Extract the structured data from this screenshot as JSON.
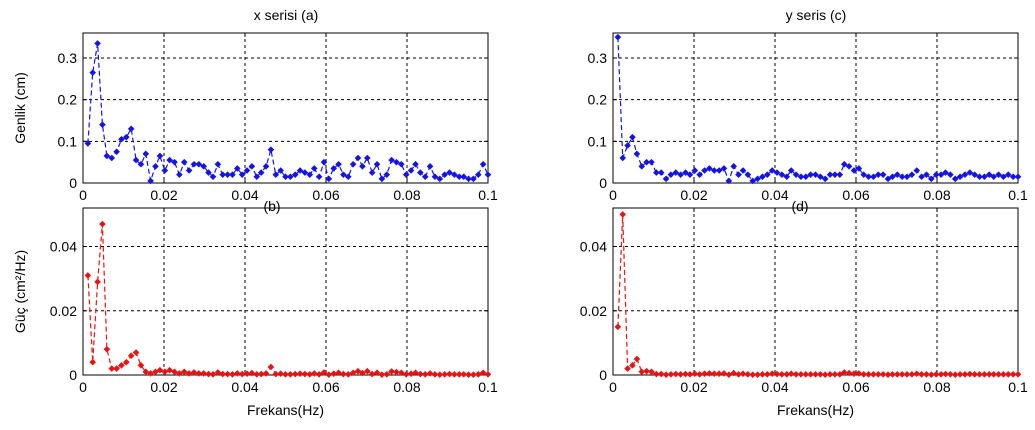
{
  "chart_data": [
    {
      "id": "a",
      "type": "line",
      "title": "x serisi (a)",
      "xlabel": "",
      "ylabel": "Genlik  (cm)",
      "xlim": [
        0,
        0.1
      ],
      "ylim": [
        0,
        0.36
      ],
      "xticks": [
        0,
        0.02,
        0.04,
        0.06,
        0.08,
        0.1
      ],
      "xtick_labels": [
        "0",
        "0.02",
        "0.04",
        "0.06",
        "0.08",
        "0.1"
      ],
      "yticks": [
        0,
        0.1,
        0.2,
        0.3
      ],
      "ytick_labels": [
        "0",
        "0.1",
        "0.2",
        "0.3"
      ],
      "grid": true,
      "color": "#1414e6",
      "marker": "diamond",
      "series": [
        {
          "x": [
            0.0012,
            0.0024,
            0.0036,
            0.0048,
            0.0059,
            0.0071,
            0.0083,
            0.0095,
            0.0107,
            0.0119,
            0.0131,
            0.0143,
            0.0155,
            0.0167,
            0.0179,
            0.019,
            0.0202,
            0.0214,
            0.0226,
            0.0238,
            0.025,
            0.0262,
            0.0274,
            0.0286,
            0.0298,
            0.031,
            0.0321,
            0.0333,
            0.0345,
            0.0357,
            0.0369,
            0.0381,
            0.0393,
            0.0405,
            0.0417,
            0.0429,
            0.044,
            0.0452,
            0.0464,
            0.0476,
            0.0488,
            0.05,
            0.0512,
            0.0524,
            0.0536,
            0.0548,
            0.056,
            0.0571,
            0.0583,
            0.0595,
            0.0607,
            0.0619,
            0.0631,
            0.0643,
            0.0655,
            0.0667,
            0.0679,
            0.069,
            0.0702,
            0.0714,
            0.0726,
            0.0738,
            0.075,
            0.0762,
            0.0774,
            0.0786,
            0.0798,
            0.081,
            0.0821,
            0.0833,
            0.0845,
            0.0857,
            0.0869,
            0.0881,
            0.0893,
            0.0905,
            0.0917,
            0.0929,
            0.094,
            0.0952,
            0.0964,
            0.0976,
            0.0988,
            0.1
          ],
          "y": [
            0.095,
            0.265,
            0.335,
            0.14,
            0.065,
            0.06,
            0.075,
            0.105,
            0.11,
            0.13,
            0.055,
            0.045,
            0.07,
            0.005,
            0.04,
            0.065,
            0.03,
            0.055,
            0.05,
            0.02,
            0.05,
            0.03,
            0.045,
            0.045,
            0.04,
            0.025,
            0.015,
            0.045,
            0.02,
            0.02,
            0.02,
            0.035,
            0.02,
            0.03,
            0.04,
            0.015,
            0.025,
            0.04,
            0.08,
            0.02,
            0.03,
            0.015,
            0.015,
            0.02,
            0.03,
            0.025,
            0.02,
            0.035,
            0.015,
            0.05,
            0.01,
            0.035,
            0.045,
            0.02,
            0.015,
            0.045,
            0.06,
            0.04,
            0.06,
            0.025,
            0.045,
            0.01,
            0.02,
            0.055,
            0.05,
            0.045,
            0.02,
            0.03,
            0.045,
            0.025,
            0.015,
            0.04,
            0.015,
            0.01,
            0.02,
            0.025,
            0.02,
            0.015,
            0.015,
            0.01,
            0.01,
            0.02,
            0.045,
            0.02
          ]
        }
      ]
    },
    {
      "id": "c",
      "type": "line",
      "title": "y seris (c)",
      "xlabel": "",
      "ylabel": "",
      "xlim": [
        0,
        0.1
      ],
      "ylim": [
        0,
        0.36
      ],
      "xticks": [
        0,
        0.02,
        0.04,
        0.06,
        0.08,
        0.1
      ],
      "xtick_labels": [
        "0",
        "0.02",
        "0.04",
        "0.06",
        "0.08",
        "0.1"
      ],
      "yticks": [
        0,
        0.1,
        0.2,
        0.3
      ],
      "ytick_labels": [
        "0",
        "0.1",
        "0.2",
        "0.3"
      ],
      "grid": true,
      "color": "#1414e6",
      "marker": "diamond",
      "series": [
        {
          "x": [
            0.0012,
            0.0024,
            0.0036,
            0.0048,
            0.0059,
            0.0071,
            0.0083,
            0.0095,
            0.0107,
            0.0119,
            0.0131,
            0.0143,
            0.0155,
            0.0167,
            0.0179,
            0.019,
            0.0202,
            0.0214,
            0.0226,
            0.0238,
            0.025,
            0.0262,
            0.0274,
            0.0286,
            0.0298,
            0.031,
            0.0321,
            0.0333,
            0.0345,
            0.0357,
            0.0369,
            0.0381,
            0.0393,
            0.0405,
            0.0417,
            0.0429,
            0.044,
            0.0452,
            0.0464,
            0.0476,
            0.0488,
            0.05,
            0.0512,
            0.0524,
            0.0536,
            0.0548,
            0.056,
            0.0571,
            0.0583,
            0.0595,
            0.0607,
            0.0619,
            0.0631,
            0.0643,
            0.0655,
            0.0667,
            0.0679,
            0.069,
            0.0702,
            0.0714,
            0.0726,
            0.0738,
            0.075,
            0.0762,
            0.0774,
            0.0786,
            0.0798,
            0.081,
            0.0821,
            0.0833,
            0.0845,
            0.0857,
            0.0869,
            0.0881,
            0.0893,
            0.0905,
            0.0917,
            0.0929,
            0.094,
            0.0952,
            0.0964,
            0.0976,
            0.0988,
            0.1
          ],
          "y": [
            0.35,
            0.06,
            0.09,
            0.11,
            0.07,
            0.04,
            0.05,
            0.05,
            0.025,
            0.025,
            0.01,
            0.02,
            0.025,
            0.02,
            0.025,
            0.02,
            0.03,
            0.02,
            0.03,
            0.035,
            0.03,
            0.03,
            0.035,
            0.005,
            0.04,
            0.02,
            0.03,
            0.02,
            0.005,
            0.01,
            0.015,
            0.02,
            0.03,
            0.025,
            0.02,
            0.015,
            0.03,
            0.02,
            0.015,
            0.015,
            0.02,
            0.02,
            0.015,
            0.01,
            0.02,
            0.02,
            0.02,
            0.045,
            0.04,
            0.03,
            0.035,
            0.02,
            0.015,
            0.015,
            0.02,
            0.02,
            0.01,
            0.015,
            0.02,
            0.015,
            0.015,
            0.02,
            0.03,
            0.015,
            0.02,
            0.01,
            0.02,
            0.02,
            0.025,
            0.02,
            0.01,
            0.015,
            0.02,
            0.025,
            0.02,
            0.015,
            0.015,
            0.02,
            0.015,
            0.02,
            0.015,
            0.02,
            0.015,
            0.015
          ]
        }
      ]
    },
    {
      "id": "b",
      "type": "line",
      "title": "(b)",
      "xlabel": "Frekans(Hz)",
      "ylabel": "Güç  (cm²/Hz)",
      "xlim": [
        0,
        0.1
      ],
      "ylim": [
        0,
        0.052
      ],
      "xticks": [
        0,
        0.02,
        0.04,
        0.06,
        0.08,
        0.1
      ],
      "xtick_labels": [
        "0",
        "0.02",
        "0.04",
        "0.06",
        "0.08",
        "0.1"
      ],
      "yticks": [
        0,
        0.02,
        0.04
      ],
      "ytick_labels": [
        "0",
        "0.02",
        "0.04"
      ],
      "grid": true,
      "color": "#e61414",
      "marker": "diamond",
      "series": [
        {
          "x": [
            0.0012,
            0.0024,
            0.0036,
            0.0048,
            0.0059,
            0.0071,
            0.0083,
            0.0095,
            0.0107,
            0.0119,
            0.0131,
            0.0143,
            0.0155,
            0.0167,
            0.0179,
            0.019,
            0.0202,
            0.0214,
            0.0226,
            0.0238,
            0.025,
            0.0262,
            0.0274,
            0.0286,
            0.0298,
            0.031,
            0.0321,
            0.0333,
            0.0345,
            0.0357,
            0.0369,
            0.0381,
            0.0393,
            0.0405,
            0.0417,
            0.0429,
            0.044,
            0.0452,
            0.0464,
            0.0476,
            0.0488,
            0.05,
            0.0512,
            0.0524,
            0.0536,
            0.0548,
            0.056,
            0.0571,
            0.0583,
            0.0595,
            0.0607,
            0.0619,
            0.0631,
            0.0643,
            0.0655,
            0.0667,
            0.0679,
            0.069,
            0.0702,
            0.0714,
            0.0726,
            0.0738,
            0.075,
            0.0762,
            0.0774,
            0.0786,
            0.0798,
            0.081,
            0.0821,
            0.0833,
            0.0845,
            0.0857,
            0.0869,
            0.0881,
            0.0893,
            0.0905,
            0.0917,
            0.0929,
            0.094,
            0.0952,
            0.0964,
            0.0976,
            0.0988,
            0.1
          ],
          "y": [
            0.031,
            0.004,
            0.029,
            0.047,
            0.008,
            0.002,
            0.002,
            0.003,
            0.004,
            0.006,
            0.007,
            0.003,
            0.001,
            0.0005,
            0.001,
            0.0015,
            0.001,
            0.0015,
            0.001,
            0.0005,
            0.001,
            0.0005,
            0.0008,
            0.0005,
            0.0005,
            0.0003,
            0.0002,
            0.0008,
            0.0003,
            0.0003,
            0.0002,
            0.0005,
            0.0003,
            0.0004,
            0.0006,
            0.0002,
            0.0003,
            0.0005,
            0.0025,
            0.0003,
            0.0004,
            0.0002,
            0.0002,
            0.0003,
            0.0004,
            0.0003,
            0.0002,
            0.0005,
            0.0002,
            0.0008,
            0.0001,
            0.0004,
            0.0007,
            0.0003,
            0.0002,
            0.0007,
            0.0012,
            0.0006,
            0.0012,
            0.0003,
            0.0007,
            0.0001,
            0.0002,
            0.0011,
            0.0009,
            0.0007,
            0.0002,
            0.0004,
            0.0007,
            0.0003,
            0.0002,
            0.0005,
            0.0002,
            0.0001,
            0.0002,
            0.0003,
            0.0002,
            0.0002,
            0.0002,
            0.0001,
            0.0001,
            0.0002,
            0.0007,
            0.0002
          ]
        }
      ]
    },
    {
      "id": "d",
      "type": "line",
      "title": "(d)",
      "xlabel": "Frekans(Hz)",
      "ylabel": "",
      "xlim": [
        0,
        0.1
      ],
      "ylim": [
        0,
        0.052
      ],
      "xticks": [
        0,
        0.02,
        0.04,
        0.06,
        0.08,
        0.1
      ],
      "xtick_labels": [
        "0",
        "0.02",
        "0.04",
        "0.06",
        "0.08",
        "0.1"
      ],
      "yticks": [
        0,
        0.02,
        0.04
      ],
      "ytick_labels": [
        "0",
        "0.02",
        "0.04"
      ],
      "grid": true,
      "color": "#e61414",
      "marker": "diamond",
      "series": [
        {
          "x": [
            0.0012,
            0.0024,
            0.0036,
            0.0048,
            0.0059,
            0.0071,
            0.0083,
            0.0095,
            0.0107,
            0.0119,
            0.0131,
            0.0143,
            0.0155,
            0.0167,
            0.0179,
            0.019,
            0.0202,
            0.0214,
            0.0226,
            0.0238,
            0.025,
            0.0262,
            0.0274,
            0.0286,
            0.0298,
            0.031,
            0.0321,
            0.0333,
            0.0345,
            0.0357,
            0.0369,
            0.0381,
            0.0393,
            0.0405,
            0.0417,
            0.0429,
            0.044,
            0.0452,
            0.0464,
            0.0476,
            0.0488,
            0.05,
            0.0512,
            0.0524,
            0.0536,
            0.0548,
            0.056,
            0.0571,
            0.0583,
            0.0595,
            0.0607,
            0.0619,
            0.0631,
            0.0643,
            0.0655,
            0.0667,
            0.0679,
            0.069,
            0.0702,
            0.0714,
            0.0726,
            0.0738,
            0.075,
            0.0762,
            0.0774,
            0.0786,
            0.0798,
            0.081,
            0.0821,
            0.0833,
            0.0845,
            0.0857,
            0.0869,
            0.0881,
            0.0893,
            0.0905,
            0.0917,
            0.0929,
            0.094,
            0.0952,
            0.0964,
            0.0976,
            0.0988,
            0.1
          ],
          "y": [
            0.015,
            0.05,
            0.002,
            0.003,
            0.005,
            0.001,
            0.0012,
            0.001,
            0.0003,
            0.0003,
            0.0001,
            0.0002,
            0.0003,
            0.0002,
            0.0003,
            0.0002,
            0.0004,
            0.0002,
            0.0004,
            0.0005,
            0.0004,
            0.0004,
            0.0005,
            0.0001,
            0.0006,
            0.0002,
            0.0004,
            0.0002,
            0.0001,
            0.0001,
            0.0002,
            0.0002,
            0.0004,
            0.0003,
            0.0002,
            0.0002,
            0.0004,
            0.0002,
            0.0002,
            0.0002,
            0.0002,
            0.0002,
            0.0002,
            0.0001,
            0.0002,
            0.0002,
            0.0002,
            0.0008,
            0.0006,
            0.0004,
            0.0005,
            0.0002,
            0.0002,
            0.0002,
            0.0002,
            0.0002,
            0.0001,
            0.0002,
            0.0002,
            0.0002,
            0.0002,
            0.0002,
            0.0004,
            0.0002,
            0.0002,
            0.0001,
            0.0002,
            0.0002,
            0.0003,
            0.0002,
            0.0001,
            0.0002,
            0.0002,
            0.0003,
            0.0002,
            0.0002,
            0.0002,
            0.0002,
            0.0002,
            0.0002,
            0.0002,
            0.0002,
            0.0002,
            0.0002
          ]
        }
      ]
    }
  ]
}
